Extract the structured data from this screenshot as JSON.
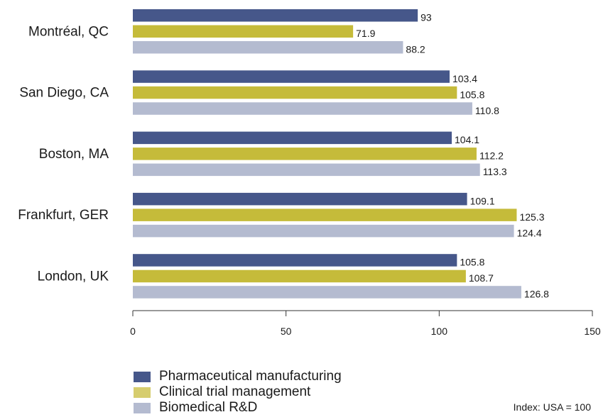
{
  "chart_data": {
    "type": "bar",
    "orientation": "horizontal",
    "categories": [
      "Montréal, QC",
      "San Diego, CA",
      "Boston, MA",
      "Frankfurt, GER",
      "London, UK"
    ],
    "series": [
      {
        "name": "Pharmaceutical manufacturing",
        "color": "#46578a",
        "values": [
          93,
          103.4,
          104.1,
          109.1,
          105.8
        ]
      },
      {
        "name": "Clinical trial management",
        "color": "#c5bb3a",
        "values": [
          71.9,
          105.8,
          112.2,
          125.3,
          108.7
        ]
      },
      {
        "name": "Biomedical R&D",
        "color": "#b4bbd0",
        "values": [
          88.2,
          110.8,
          113.3,
          124.4,
          126.8
        ]
      }
    ],
    "value_labels": [
      [
        "93",
        "103.4",
        "104.1",
        "109.1",
        "105.8"
      ],
      [
        "71.9",
        "105.8",
        "112.2",
        "125.3",
        "108.7"
      ],
      [
        "88.2",
        "110.8",
        "113.3",
        "124.4",
        "126.8"
      ]
    ],
    "xlim": [
      0,
      150
    ],
    "xticks": [
      0,
      50,
      100,
      150
    ],
    "xtick_labels": [
      "0",
      "50",
      "100",
      "150"
    ],
    "grid": false,
    "legend_position": "bottom-left"
  },
  "legend_swatch_colors": [
    "#46578a",
    "#d6cd6e",
    "#b4bbd0"
  ],
  "note": "Index: USA = 100"
}
